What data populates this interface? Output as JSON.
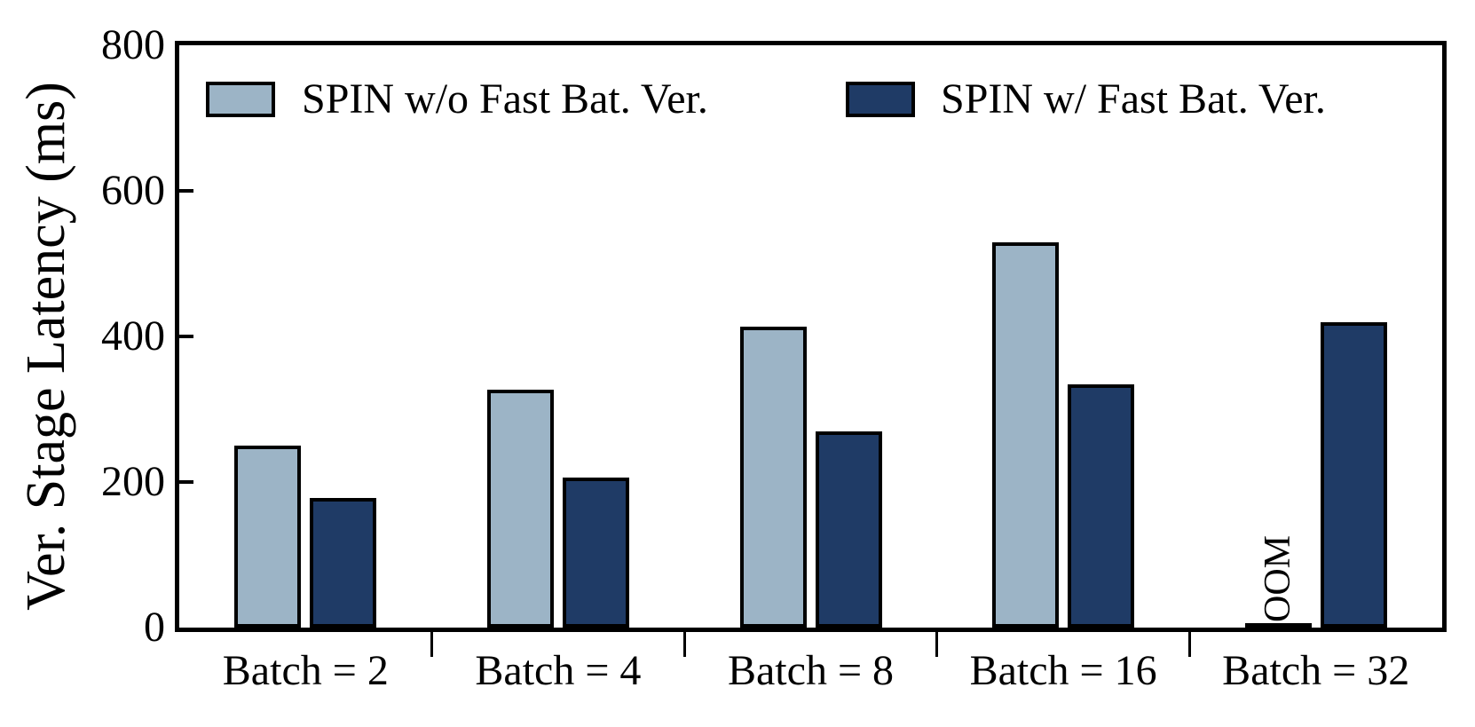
{
  "figure": {
    "background": "#ffffff",
    "text_color": "#000000",
    "axis_color": "#000000"
  },
  "chart_data": {
    "type": "bar",
    "title": "",
    "xlabel": "",
    "ylabel": "Ver. Stage Latency (ms)",
    "ylim": [
      0,
      800
    ],
    "yticks": [
      0,
      200,
      400,
      600,
      800
    ],
    "categories": [
      "Batch = 2",
      "Batch = 4",
      "Batch = 8",
      "Batch = 16",
      "Batch = 32"
    ],
    "series": [
      {
        "name": "SPIN w/o Fast Bat. Ver.",
        "color": "#9CB4C6",
        "edge_color": "#000000",
        "values": [
          250,
          327,
          413,
          529,
          null
        ]
      },
      {
        "name": "SPIN w/ Fast Bat. Ver.",
        "color": "#1F3B66",
        "edge_color": "#000000",
        "values": [
          178,
          206,
          270,
          334,
          420
        ]
      }
    ],
    "annotations": [
      {
        "text": "OOM",
        "category": "Batch = 32",
        "series": "SPIN w/o Fast Bat. Ver.",
        "rotation": 90
      }
    ],
    "grid": false,
    "legend_position": "top-inside"
  }
}
